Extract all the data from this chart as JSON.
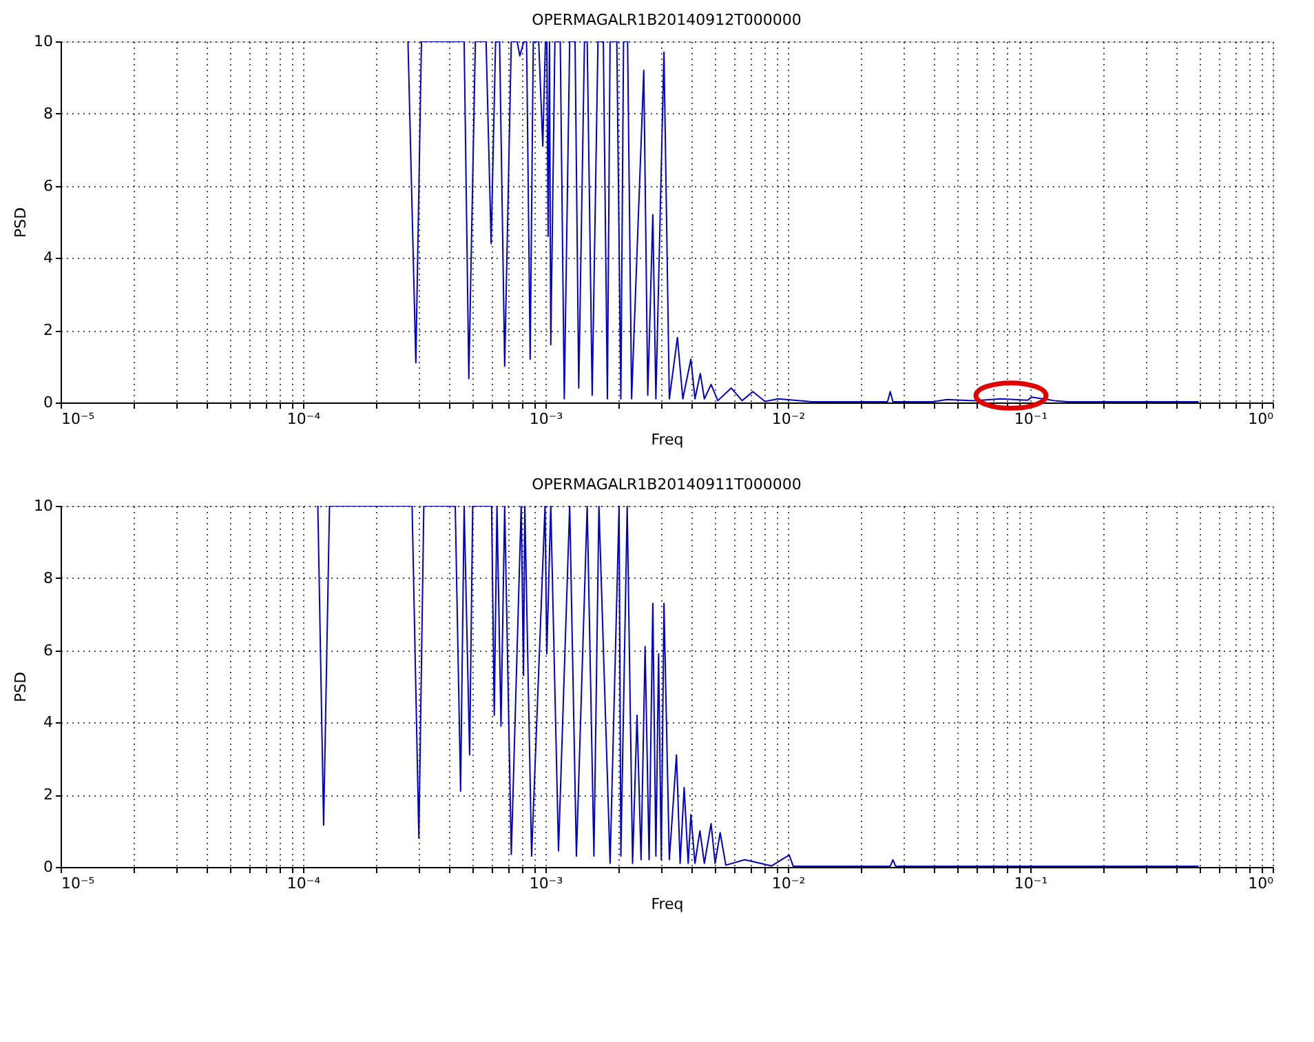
{
  "chart_data": [
    {
      "type": "line",
      "title": "OPERMAGALR1B20140912T000000",
      "xlabel": "Freq",
      "ylabel": "PSD",
      "log": "x",
      "grid": true,
      "marker": "none",
      "line_style": "solid",
      "xlim": [
        1e-05,
        1
      ],
      "ylim": [
        0,
        10
      ],
      "xticks": [
        {
          "value": 1e-05,
          "label": "10⁻⁵"
        },
        {
          "value": 2e-05,
          "label": null
        },
        {
          "value": 3e-05,
          "label": null
        },
        {
          "value": 4e-05,
          "label": null
        },
        {
          "value": 5e-05,
          "label": null
        },
        {
          "value": 6e-05,
          "label": null
        },
        {
          "value": 7e-05,
          "label": null
        },
        {
          "value": 8e-05,
          "label": null
        },
        {
          "value": 9e-05,
          "label": null
        },
        {
          "value": 0.0001,
          "label": "10⁻⁴"
        },
        {
          "value": 0.0002,
          "label": null
        },
        {
          "value": 0.0003,
          "label": null
        },
        {
          "value": 0.0004,
          "label": null
        },
        {
          "value": 0.0005,
          "label": null
        },
        {
          "value": 0.0006,
          "label": null
        },
        {
          "value": 0.0007,
          "label": null
        },
        {
          "value": 0.0008,
          "label": null
        },
        {
          "value": 0.0009,
          "label": null
        },
        {
          "value": 0.001,
          "label": "10⁻³"
        },
        {
          "value": 0.002,
          "label": null
        },
        {
          "value": 0.003,
          "label": null
        },
        {
          "value": 0.004,
          "label": null
        },
        {
          "value": 0.005,
          "label": null
        },
        {
          "value": 0.006,
          "label": null
        },
        {
          "value": 0.007,
          "label": null
        },
        {
          "value": 0.008,
          "label": null
        },
        {
          "value": 0.009,
          "label": null
        },
        {
          "value": 0.01,
          "label": "10⁻²"
        },
        {
          "value": 0.02,
          "label": null
        },
        {
          "value": 0.03,
          "label": null
        },
        {
          "value": 0.04,
          "label": null
        },
        {
          "value": 0.05,
          "label": null
        },
        {
          "value": 0.06,
          "label": null
        },
        {
          "value": 0.07,
          "label": null
        },
        {
          "value": 0.08,
          "label": null
        },
        {
          "value": 0.09,
          "label": null
        },
        {
          "value": 0.1,
          "label": "10⁻¹"
        },
        {
          "value": 0.2,
          "label": null
        },
        {
          "value": 0.3,
          "label": null
        },
        {
          "value": 0.4,
          "label": null
        },
        {
          "value": 0.5,
          "label": null
        },
        {
          "value": 0.6,
          "label": null
        },
        {
          "value": 0.7,
          "label": null
        },
        {
          "value": 0.8,
          "label": null
        },
        {
          "value": 0.9,
          "label": null
        },
        {
          "value": 1,
          "label": "10⁰"
        }
      ],
      "yticks": [
        0,
        2,
        4,
        6,
        8,
        10
      ],
      "series": [
        {
          "color": "#0000c8",
          "x": [
            0.000271,
            0.000292,
            0.000308,
            0.000462,
            0.000483,
            0.000514,
            0.000569,
            0.000597,
            0.000623,
            0.000647,
            0.000679,
            0.000723,
            0.000764,
            0.000784,
            0.000815,
            0.000836,
            0.000865,
            0.000891,
            0.000938,
            0.000975,
            0.001,
            0.001013,
            0.001026,
            0.001039,
            0.001052,
            0.001094,
            0.001151,
            0.001196,
            0.001259,
            0.001325,
            0.001372,
            0.001449,
            0.001487,
            0.001559,
            0.001647,
            0.001733,
            0.001801,
            0.001848,
            0.00197,
            0.002047,
            0.0021,
            0.002182,
            0.002267,
            0.002545,
            0.002643,
            0.002773,
            0.002855,
            0.003083,
            0.003244,
            0.003503,
            0.003687,
            0.003981,
            0.004137,
            0.004354,
            0.004524,
            0.004823,
            0.005142,
            0.005843,
            0.006474,
            0.007171,
            0.008046,
            0.009147,
            0.01259,
            0.02577,
            0.02644,
            0.02713,
            0.03981,
            0.04524,
            0.05843,
            0.07548,
            0.09747,
            0.1013,
            0.1259,
            0.1431,
            0.4947
          ],
          "values": [
            10,
            1.1,
            10,
            10,
            0.66,
            10,
            10,
            4.4,
            10,
            10,
            1.0,
            10,
            10,
            9.6,
            10,
            10,
            1.2,
            10,
            10,
            7.1,
            10,
            10,
            4.6,
            10,
            1.6,
            10,
            10,
            0.1,
            10,
            10,
            0.4,
            10,
            10,
            0.2,
            10,
            10,
            0.1,
            10,
            10,
            0.1,
            10,
            10,
            0.1,
            9.2,
            0.2,
            5.2,
            0.1,
            9.7,
            0.1,
            1.8,
            0.1,
            1.2,
            0.1,
            0.8,
            0.1,
            0.5,
            0.05,
            0.4,
            0.05,
            0.3,
            0.03,
            0.1,
            0.02,
            0.02,
            0.3,
            0.02,
            0.02,
            0.08,
            0.05,
            0.1,
            0.06,
            0.15,
            0.05,
            0.02,
            0.02
          ]
        }
      ]
    },
    {
      "type": "line",
      "title": "OPERMAGALR1B20140911T000000",
      "xlabel": "Freq",
      "ylabel": "PSD",
      "log": "x",
      "grid": true,
      "marker": "none",
      "line_style": "solid",
      "xlim": [
        1e-05,
        1
      ],
      "ylim": [
        0,
        10
      ],
      "xticks": [
        {
          "value": 1e-05,
          "label": "10⁻⁵"
        },
        {
          "value": 2e-05,
          "label": null
        },
        {
          "value": 3e-05,
          "label": null
        },
        {
          "value": 4e-05,
          "label": null
        },
        {
          "value": 5e-05,
          "label": null
        },
        {
          "value": 6e-05,
          "label": null
        },
        {
          "value": 7e-05,
          "label": null
        },
        {
          "value": 8e-05,
          "label": null
        },
        {
          "value": 9e-05,
          "label": null
        },
        {
          "value": 0.0001,
          "label": "10⁻⁴"
        },
        {
          "value": 0.0002,
          "label": null
        },
        {
          "value": 0.0003,
          "label": null
        },
        {
          "value": 0.0004,
          "label": null
        },
        {
          "value": 0.0005,
          "label": null
        },
        {
          "value": 0.0006,
          "label": null
        },
        {
          "value": 0.0007,
          "label": null
        },
        {
          "value": 0.0008,
          "label": null
        },
        {
          "value": 0.0009,
          "label": null
        },
        {
          "value": 0.001,
          "label": "10⁻³"
        },
        {
          "value": 0.002,
          "label": null
        },
        {
          "value": 0.003,
          "label": null
        },
        {
          "value": 0.004,
          "label": null
        },
        {
          "value": 0.005,
          "label": null
        },
        {
          "value": 0.006,
          "label": null
        },
        {
          "value": 0.007,
          "label": null
        },
        {
          "value": 0.008,
          "label": null
        },
        {
          "value": 0.009,
          "label": null
        },
        {
          "value": 0.01,
          "label": "10⁻²"
        },
        {
          "value": 0.02,
          "label": null
        },
        {
          "value": 0.03,
          "label": null
        },
        {
          "value": 0.04,
          "label": null
        },
        {
          "value": 0.05,
          "label": null
        },
        {
          "value": 0.06,
          "label": null
        },
        {
          "value": 0.07,
          "label": null
        },
        {
          "value": 0.08,
          "label": null
        },
        {
          "value": 0.09,
          "label": null
        },
        {
          "value": 0.1,
          "label": "10⁻¹"
        },
        {
          "value": 0.2,
          "label": null
        },
        {
          "value": 0.3,
          "label": null
        },
        {
          "value": 0.4,
          "label": null
        },
        {
          "value": 0.5,
          "label": null
        },
        {
          "value": 0.6,
          "label": null
        },
        {
          "value": 0.7,
          "label": null
        },
        {
          "value": 0.8,
          "label": null
        },
        {
          "value": 0.9,
          "label": null
        },
        {
          "value": 1,
          "label": "10⁰"
        }
      ],
      "yticks": [
        0,
        2,
        4,
        6,
        8,
        10
      ],
      "series": [
        {
          "color": "#0000c8",
          "x": [
            0.0001151,
            0.0001216,
            0.0001286,
            0.0002818,
            0.0003005,
            0.000315,
            0.0004245,
            0.0004467,
            0.000462,
            0.0004867,
            0.0005012,
            0.0005995,
            0.000615,
            0.000631,
            0.0006557,
            0.000679,
            0.000723,
            0.0007943,
            0.0008118,
            0.0008222,
            0.0008768,
            0.0009962,
            0.001013,
            0.001052,
            0.001132,
            0.001259,
            0.001342,
            0.001487,
            0.001585,
            0.001662,
            0.001848,
            0.002013,
            0.002047,
            0.002174,
            0.002288,
            0.002387,
            0.00248,
            0.002577,
            0.002677,
            0.002773,
            0.002855,
            0.002929,
            0.003005,
            0.003083,
            0.003244,
            0.003472,
            0.003594,
            0.003735,
            0.00388,
            0.003981,
            0.004137,
            0.004337,
            0.004524,
            0.004823,
            0.005012,
            0.005255,
            0.005549,
            0.00664,
            0.008577,
            0.01013,
            0.01052,
            0.02644,
            0.02713,
            0.02783,
            0.4947
          ],
          "values": [
            10,
            1.16,
            10,
            10,
            0.8,
            10,
            10,
            2.1,
            10,
            3.1,
            10,
            10,
            4.2,
            10,
            3.9,
            10,
            0.35,
            10,
            5.3,
            10,
            0.3,
            10,
            5.9,
            10,
            0.45,
            10,
            0.3,
            10,
            0.3,
            10,
            0.1,
            10,
            0.3,
            10,
            0.1,
            4.2,
            0.2,
            6.1,
            0.2,
            7.3,
            0.3,
            5.9,
            0.2,
            7.3,
            0.2,
            3.1,
            0.1,
            2.2,
            0.1,
            1.45,
            0.1,
            1.0,
            0.1,
            1.2,
            0.1,
            0.95,
            0.05,
            0.2,
            0.03,
            0.33,
            0.02,
            0.02,
            0.2,
            0.02,
            0.02
          ]
        }
      ]
    }
  ]
}
